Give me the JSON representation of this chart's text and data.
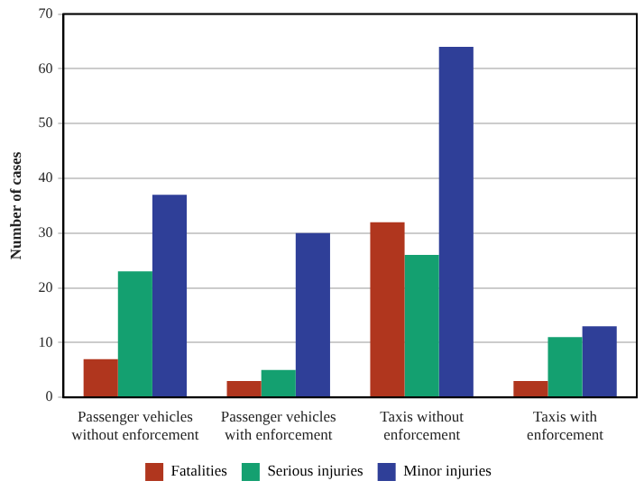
{
  "chart_data": {
    "type": "bar",
    "ylabel": "Number of cases",
    "categories": [
      "Passenger vehicles without enforcement",
      "Passenger vehicles with enforcement",
      "Taxis without enforcement",
      "Taxis with enforcement"
    ],
    "series": [
      {
        "name": "Fatalities",
        "color": "#b0361e",
        "values": [
          7,
          3,
          32,
          3
        ]
      },
      {
        "name": "Serious injuries",
        "color": "#14a070",
        "values": [
          23,
          5,
          26,
          11
        ]
      },
      {
        "name": "Minor injuries",
        "color": "#2f3f98",
        "values": [
          37,
          30,
          64,
          13
        ]
      }
    ],
    "ylim": [
      0,
      70
    ],
    "yticks": [
      0,
      10,
      20,
      30,
      40,
      50,
      60,
      70
    ],
    "grid": "y",
    "legend": "bottom"
  }
}
